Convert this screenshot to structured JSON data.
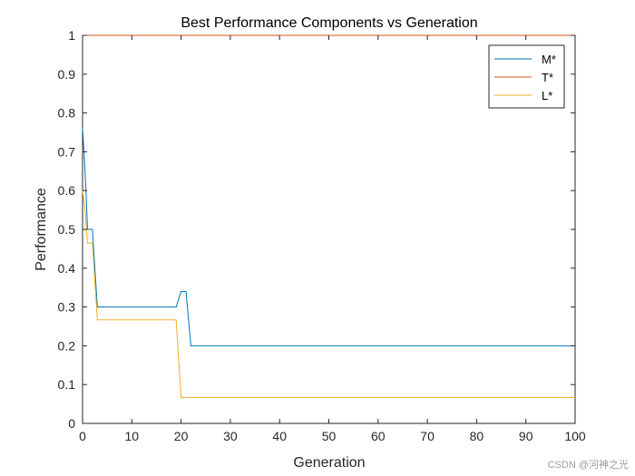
{
  "chart_data": {
    "type": "line",
    "title": "Best Performance Components vs Generation",
    "xlabel": "Generation",
    "ylabel": "Performance",
    "xlim": [
      0,
      100
    ],
    "ylim": [
      0,
      1
    ],
    "xticks": [
      0,
      10,
      20,
      30,
      40,
      50,
      60,
      70,
      80,
      90,
      100
    ],
    "yticks": [
      0,
      0.1,
      0.2,
      0.3,
      0.4,
      0.5,
      0.6,
      0.7,
      0.8,
      0.9,
      1
    ],
    "xtick_labels": [
      "0",
      "10",
      "20",
      "30",
      "40",
      "50",
      "60",
      "70",
      "80",
      "90",
      "100"
    ],
    "ytick_labels": [
      "0",
      "0.1",
      "0.2",
      "0.3",
      "0.4",
      "0.5",
      "0.6",
      "0.7",
      "0.8",
      "0.9",
      "1"
    ],
    "grid": false,
    "legend_position": "top-right",
    "series": [
      {
        "name": "M*",
        "color": "#0072BD",
        "x": [
          0,
          0.3,
          0.7,
          1,
          2,
          3,
          19,
          20,
          21,
          22,
          100
        ],
        "y": [
          0.76,
          0.7,
          0.6,
          0.5,
          0.5,
          0.3,
          0.3,
          0.34,
          0.34,
          0.2,
          0.2
        ]
      },
      {
        "name": "T*",
        "color": "#D95319",
        "x": [
          0,
          100
        ],
        "y": [
          1,
          1
        ]
      },
      {
        "name": "L*",
        "color": "#EDB120",
        "x": [
          0,
          0.5,
          1,
          2,
          3,
          19,
          20,
          100
        ],
        "y": [
          0.6,
          0.55,
          0.465,
          0.465,
          0.267,
          0.267,
          0.067,
          0.067
        ]
      }
    ]
  },
  "watermark": "CSDN @河神之光"
}
